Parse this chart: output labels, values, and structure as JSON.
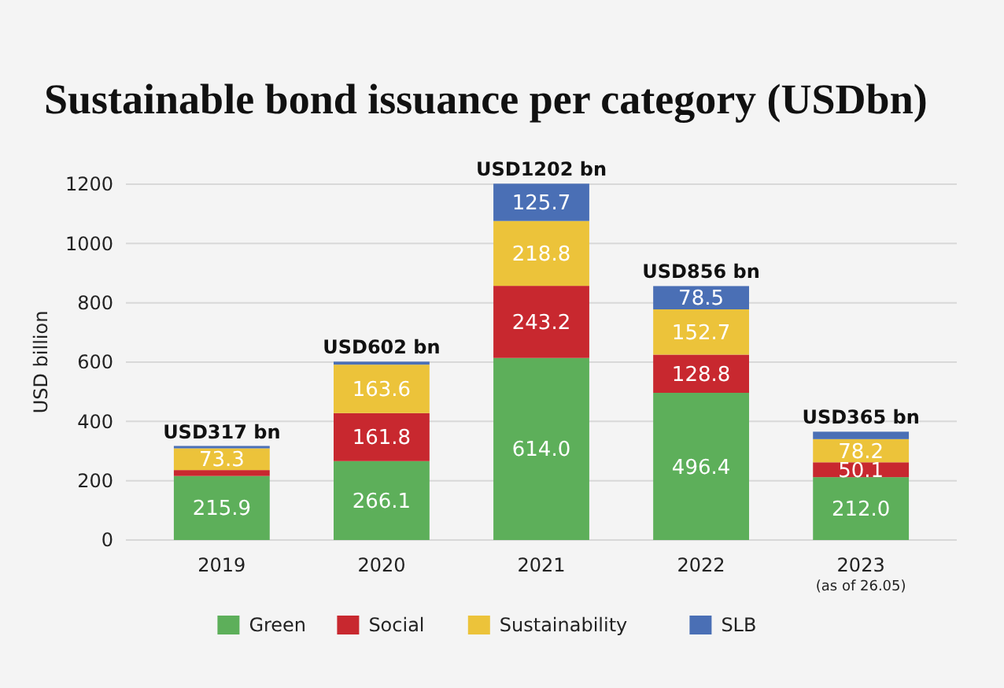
{
  "chart_data": {
    "type": "bar",
    "title": "Sustainable bond issuance per category (USDbn)",
    "ylabel": "USD billion",
    "categories": [
      "2019",
      "2020",
      "2021",
      "2022",
      "2023\n(as of 26.05)"
    ],
    "stacked": true,
    "ylim": [
      0,
      1200
    ],
    "yticks": [
      0,
      200,
      400,
      600,
      800,
      1000,
      1200
    ],
    "grid": "y",
    "legend": "bottom",
    "series": [
      {
        "name": "Green",
        "color": "#5daf5a",
        "values": [
          215.9,
          266.1,
          614.0,
          496.4,
          212.0
        ],
        "value_labels": [
          "215.9",
          "266.1",
          "614.0",
          "496.4",
          "212.0"
        ]
      },
      {
        "name": "Social",
        "color": "#c8282f",
        "values": [
          20,
          161.8,
          243.2,
          128.8,
          50.1
        ],
        "value_labels": [
          null,
          "161.8",
          "243.2",
          "128.8",
          "50.1"
        ]
      },
      {
        "name": "Sustainability",
        "color": "#ecc33a",
        "values": [
          73.3,
          163.6,
          218.8,
          152.7,
          78.2
        ],
        "value_labels": [
          "73.3",
          "163.6",
          "218.8",
          "152.7",
          "78.2"
        ]
      },
      {
        "name": "SLB",
        "color": "#4a6fb5",
        "values": [
          8,
          10,
          125.7,
          78.5,
          25
        ],
        "value_labels": [
          null,
          null,
          "125.7",
          "78.5",
          null
        ]
      }
    ],
    "totals": [
      "USD317 bn",
      "USD602 bn",
      "USD1202 bn",
      "USD856 bn",
      "USD365 bn"
    ]
  }
}
